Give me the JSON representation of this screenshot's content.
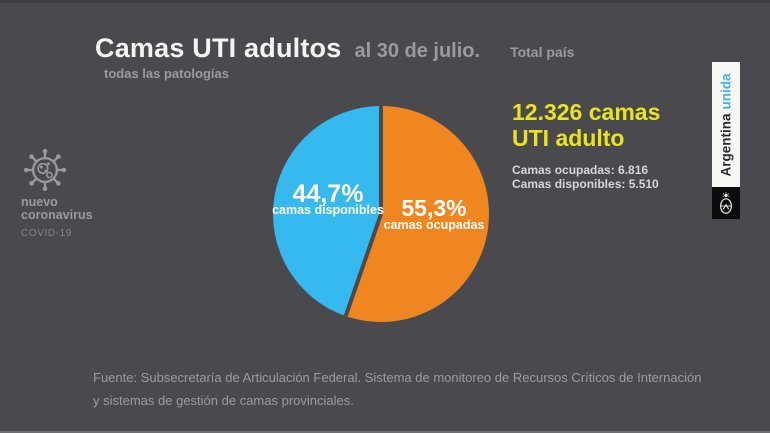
{
  "page": {
    "background_color": "#4a4a4e"
  },
  "header": {
    "title": "Camas UTI adultos",
    "date": "al 30 de julio.",
    "scope": "Total país",
    "subtitle": "todas las patologías"
  },
  "covid_badge": {
    "icon": "coronavirus-icon",
    "line1": "nuevo",
    "line2": "coronavirus",
    "line3": "COVID-19"
  },
  "chart_data": {
    "type": "pie",
    "title": "Camas UTI adultos al 30 de julio. Total país - todas las patologías",
    "start_angle_deg": -90,
    "direction": "clockwise",
    "separator_color": "#4a4a4e",
    "legend_position": "inside",
    "slices": [
      {
        "label": "camas ocupadas",
        "percent_label": "55,3%",
        "value": 55.3,
        "count": 6816,
        "color": "#f0861f"
      },
      {
        "label": "camas disponibles",
        "percent_label": "44,7%",
        "value": 44.7,
        "count": 5510,
        "color": "#35b9ee"
      }
    ]
  },
  "summary": {
    "total_line1": "12.326 camas",
    "total_line2": "UTI adulto",
    "occupied": "Camas ocupadas: 6.816",
    "available": "Camas disponibles: 5.510",
    "accent_color": "#e9e41d"
  },
  "brand": {
    "name_dark": "Argentina",
    "name_blue": "unida",
    "emblem": "argentina-coat-of-arms",
    "blue_color": "#45b3e7"
  },
  "source": {
    "line1": "Fuente: Subsecretaría de Articulación Federal. Sistema de monitoreo de Recursos Críticos de Internación",
    "line2": "y sistemas de gestión de camas provinciales."
  }
}
